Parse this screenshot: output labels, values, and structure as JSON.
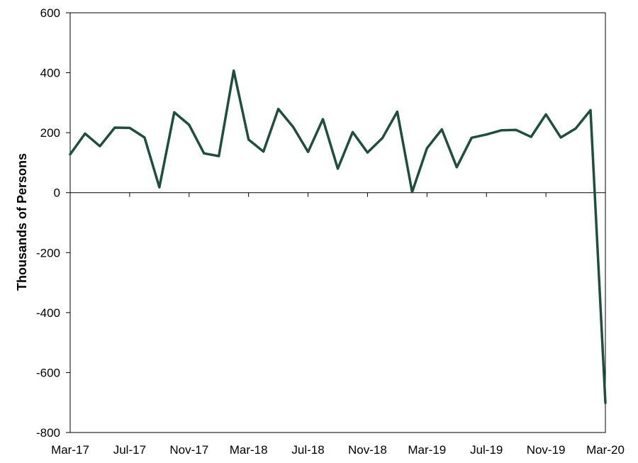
{
  "chart_data": {
    "type": "line",
    "title": "",
    "xlabel": "",
    "ylabel": "Thousands of Persons",
    "ylim": [
      -800,
      600
    ],
    "yticks": [
      600,
      400,
      200,
      0,
      -200,
      -400,
      -600,
      -800
    ],
    "y_tick_labels": [
      "600",
      "400",
      "200",
      "0",
      "-200",
      "-400",
      "-600",
      "-800"
    ],
    "x_tick_labels": [
      "Mar-17",
      "Jul-17",
      "Nov-17",
      "Mar-18",
      "Jul-18",
      "Nov-18",
      "Mar-19",
      "Jul-19",
      "Nov-19",
      "Mar-20"
    ],
    "x": [
      "Mar-17",
      "Apr-17",
      "May-17",
      "Jun-17",
      "Jul-17",
      "Aug-17",
      "Sep-17",
      "Oct-17",
      "Nov-17",
      "Dec-17",
      "Jan-18",
      "Feb-18",
      "Mar-18",
      "Apr-18",
      "May-18",
      "Jun-18",
      "Jul-18",
      "Aug-18",
      "Sep-18",
      "Oct-18",
      "Nov-18",
      "Dec-18",
      "Jan-19",
      "Feb-19",
      "Mar-19",
      "Apr-19",
      "May-19",
      "Jun-19",
      "Jul-19",
      "Aug-19",
      "Sep-19",
      "Oct-19",
      "Nov-19",
      "Dec-19",
      "Jan-20",
      "Feb-20",
      "Mar-20"
    ],
    "grid": false,
    "legend": "none",
    "series": [
      {
        "color": "#1f4e3d",
        "values": [
          128,
          197,
          155,
          217,
          216,
          184,
          18,
          268,
          226,
          131,
          122,
          407,
          177,
          137,
          279,
          219,
          136,
          245,
          80,
          202,
          134,
          182,
          270,
          2,
          148,
          211,
          85,
          183,
          194,
          208,
          209,
          186,
          261,
          184,
          214,
          275,
          -701
        ]
      }
    ]
  }
}
